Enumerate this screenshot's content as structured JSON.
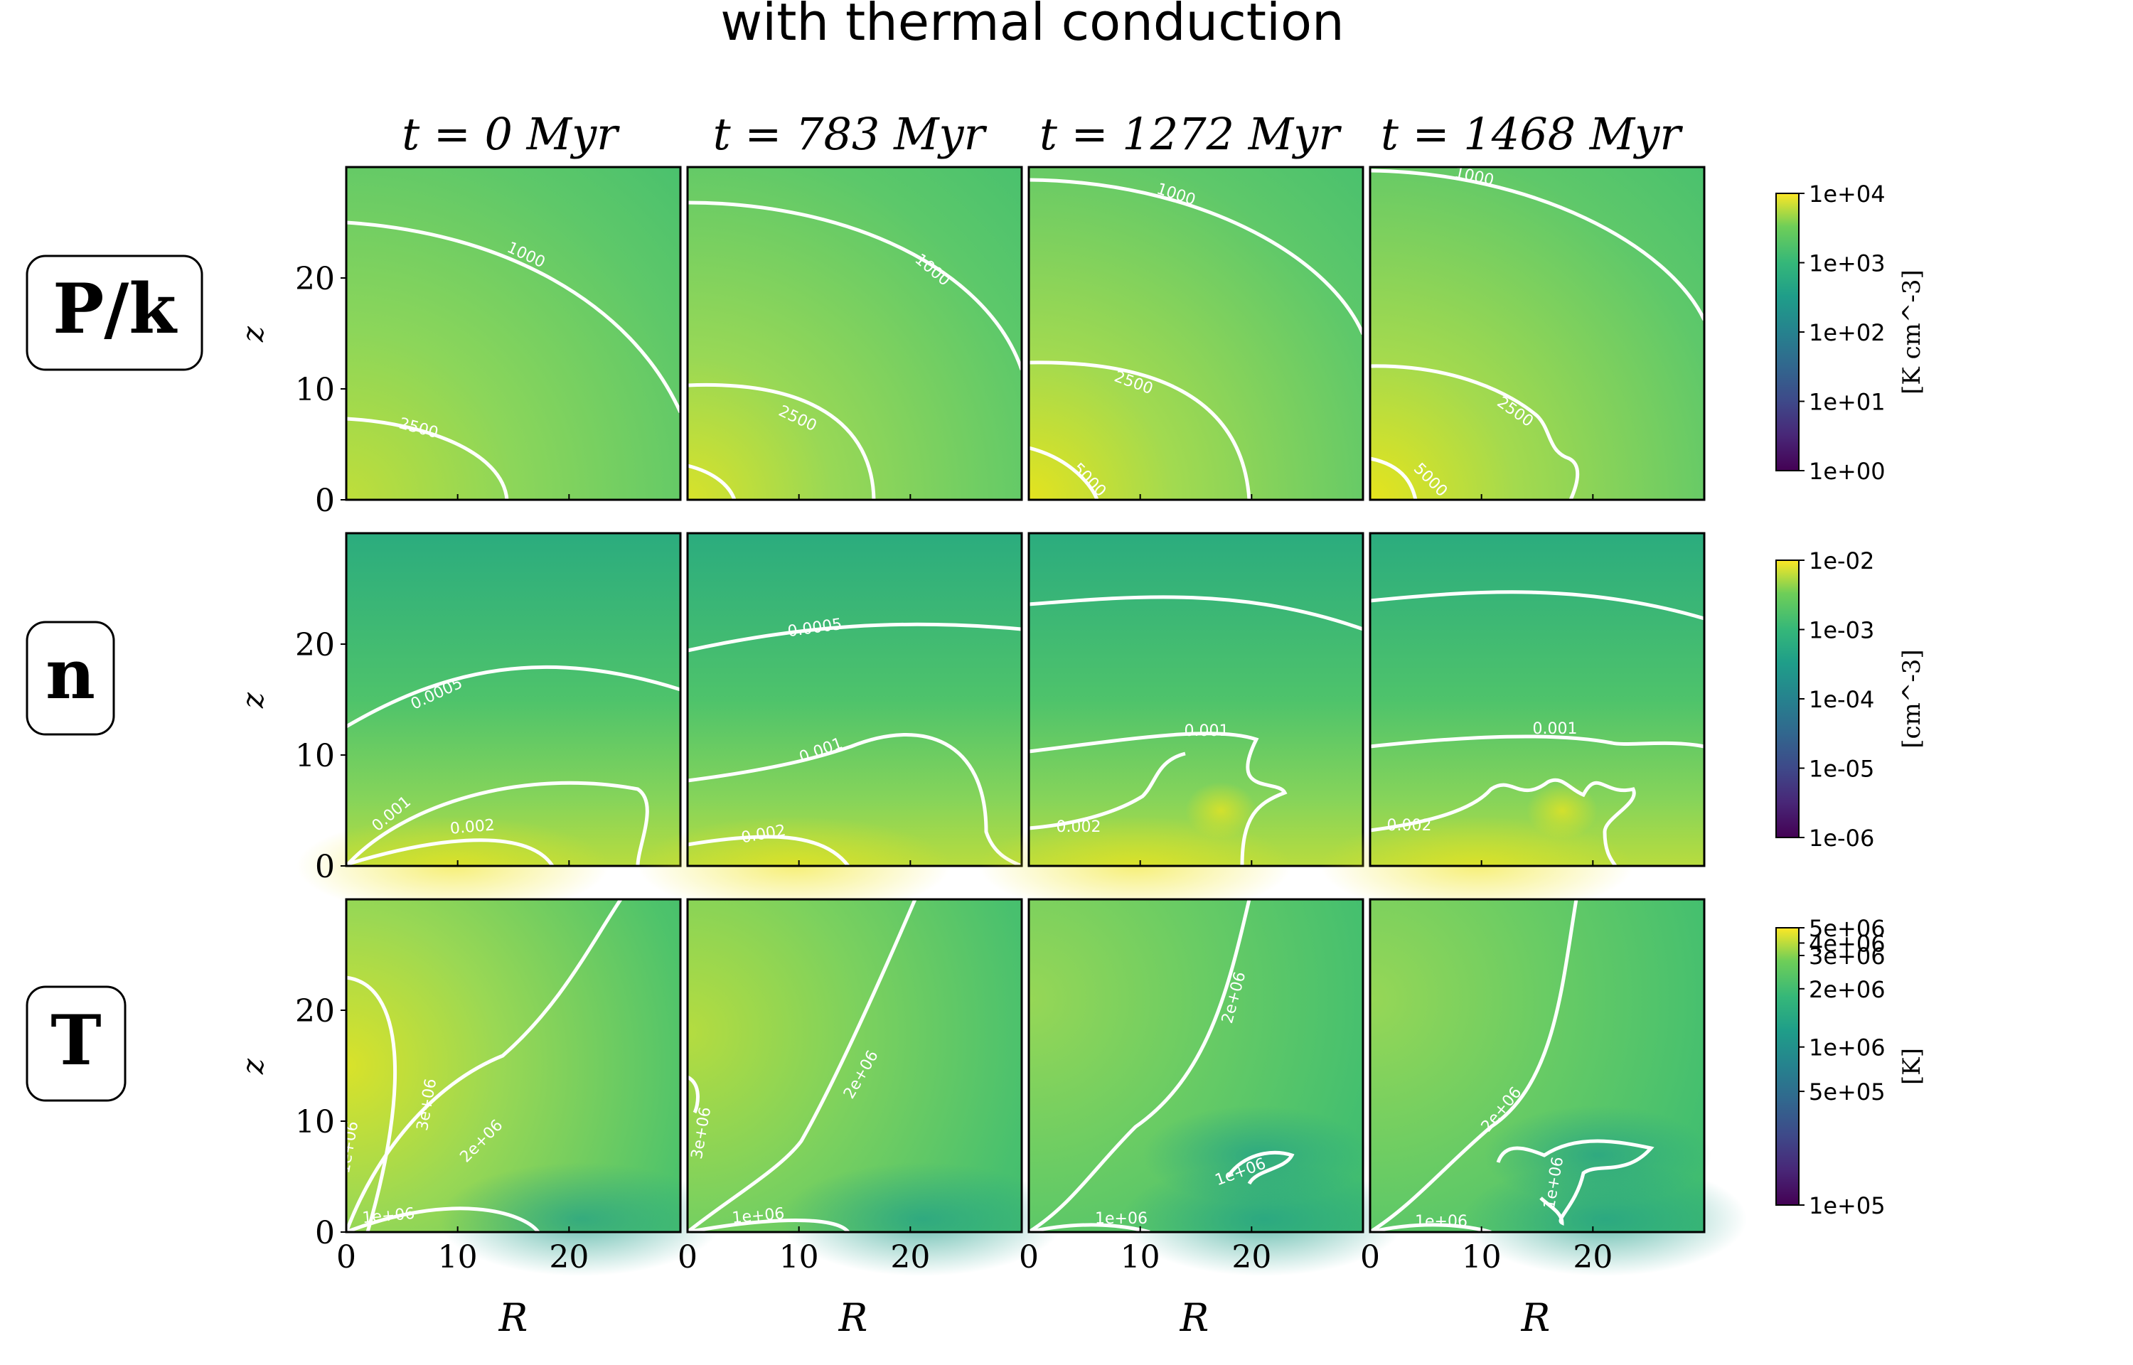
{
  "title": "with thermal conduction",
  "columns": [
    "t = 0 Myr",
    "t = 783 Myr",
    "t = 1272 Myr",
    "t = 1468 Myr"
  ],
  "rows": [
    {
      "label": "P/k",
      "unit": "[K cm^-3]",
      "cbar_ticks": [
        "1e+04",
        "1e+03",
        "1e+02",
        "1e+01",
        "1e+00"
      ],
      "field": "pressure"
    },
    {
      "label": "n",
      "unit": "[cm^-3]",
      "cbar_ticks": [
        "1e-02",
        "1e-03",
        "1e-04",
        "1e-05",
        "1e-06"
      ],
      "field": "density"
    },
    {
      "label": "T",
      "unit": "[K]",
      "cbar_ticks": [
        "5e+06",
        "4e+06",
        "3e+06",
        "2e+06",
        "1e+06",
        "5e+05",
        "1e+05"
      ],
      "field": "temperature"
    }
  ],
  "axes": {
    "xlabel": "R",
    "ylabel": "z",
    "xticks": [
      "0",
      "10",
      "20"
    ],
    "yticks": [
      "0",
      "10",
      "20"
    ]
  },
  "chart_data": {
    "type": "heatmap",
    "colormap": "viridis",
    "panels": [
      {
        "row": 0,
        "col": 0,
        "contour_levels": [
          "1000",
          "2500"
        ]
      },
      {
        "row": 0,
        "col": 1,
        "contour_levels": [
          "1000",
          "2500"
        ]
      },
      {
        "row": 0,
        "col": 2,
        "contour_levels": [
          "1000",
          "2500",
          "5000"
        ]
      },
      {
        "row": 0,
        "col": 3,
        "contour_levels": [
          "1000",
          "2500",
          "5000"
        ]
      },
      {
        "row": 1,
        "col": 0,
        "contour_levels": [
          "0.0005",
          "0.001",
          "0.002"
        ]
      },
      {
        "row": 1,
        "col": 1,
        "contour_levels": [
          "0.0005",
          "0.001",
          "0.002"
        ]
      },
      {
        "row": 1,
        "col": 2,
        "contour_levels": [
          "0.001",
          "0.002"
        ]
      },
      {
        "row": 1,
        "col": 3,
        "contour_levels": [
          "0.001",
          "0.002"
        ]
      },
      {
        "row": 2,
        "col": 0,
        "contour_levels": [
          "3e+06",
          "2e+06",
          "1e+06"
        ]
      },
      {
        "row": 2,
        "col": 1,
        "contour_levels": [
          "3e+06",
          "2e+06",
          "1e+06"
        ]
      },
      {
        "row": 2,
        "col": 2,
        "contour_levels": [
          "2e+06",
          "1e+06"
        ]
      },
      {
        "row": 2,
        "col": 3,
        "contour_levels": [
          "2e+06",
          "1e+06"
        ]
      }
    ]
  }
}
